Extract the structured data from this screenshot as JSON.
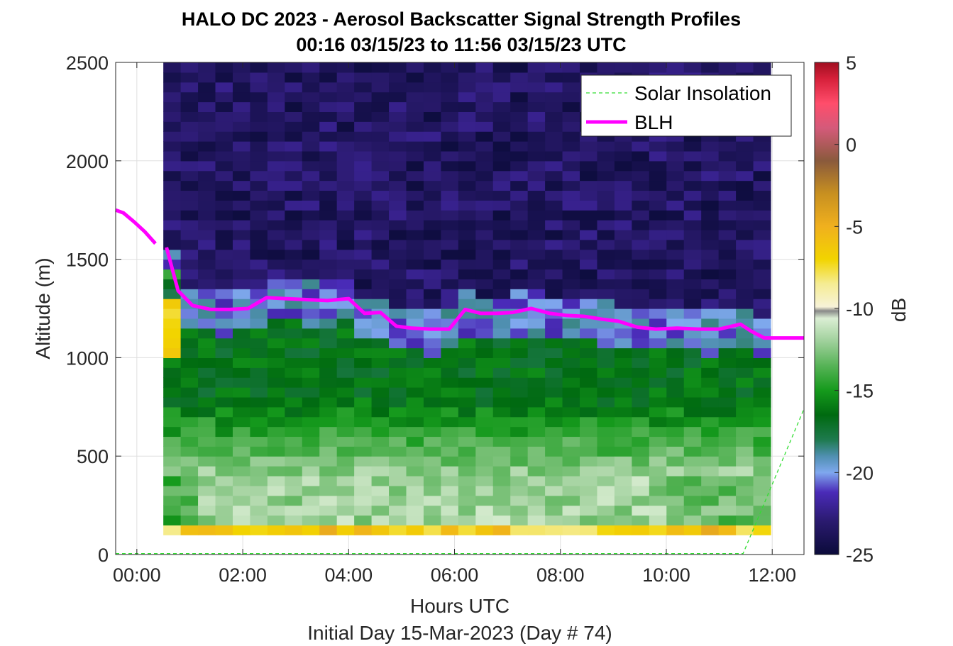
{
  "chart_data": {
    "type": "heatmap",
    "title": "HALO DC 2023 - Aerosol Backscatter Signal Strength Profiles",
    "subtitle": "00:16 03/15/23 to 11:56 03/15/23  UTC",
    "xlabel": "Hours UTC",
    "xlabel2": "Initial Day 15-Mar-2023 (Day # 74)",
    "ylabel": "Altitude (m)",
    "colorbar_label": "dB",
    "xlim": [
      -0.4,
      12.6
    ],
    "ylim": [
      0,
      2500
    ],
    "clim": [
      -25,
      5
    ],
    "x_ticks": [
      0,
      2,
      4,
      6,
      8,
      10,
      12
    ],
    "x_tick_labels": [
      "00:00",
      "02:00",
      "04:00",
      "06:00",
      "08:00",
      "10:00",
      "12:00"
    ],
    "y_ticks": [
      0,
      500,
      1000,
      1500,
      2000,
      2500
    ],
    "y_tick_labels": [
      "0",
      "500",
      "1000",
      "1500",
      "2000",
      "2500"
    ],
    "c_ticks": [
      5,
      0,
      -5,
      -10,
      -15,
      -20,
      -25
    ],
    "c_tick_labels": [
      "5",
      "0",
      "-5",
      "-10",
      "-15",
      "-20",
      "-25"
    ],
    "grid": true,
    "legend_position": "top-right",
    "legend": [
      "Solar Insolation",
      "BLH"
    ],
    "heatmap_x_start": 0.5,
    "heatmap_x_end": 11.97,
    "heatmap_columns": 35,
    "heatmap_y_bottom": 100,
    "heatmap_y_top": 2500,
    "heatmap_bin_m": 50,
    "blh_hours": [
      -0.4,
      -0.25,
      -0.05,
      0.15,
      0.35,
      0.56,
      0.78,
      1.05,
      1.4,
      1.75,
      2.1,
      2.45,
      2.8,
      3.2,
      3.6,
      4.0,
      4.3,
      4.6,
      4.9,
      5.2,
      5.55,
      5.9,
      6.2,
      6.5,
      6.8,
      7.1,
      7.45,
      7.8,
      8.1,
      8.45,
      8.8,
      9.1,
      9.45,
      9.8,
      10.2,
      10.6,
      11.0,
      11.4,
      11.6,
      11.85,
      12.1,
      12.6
    ],
    "blh_altitude": [
      1750,
      1735,
      1690,
      1640,
      1580,
      1560,
      1340,
      1265,
      1245,
      1245,
      1250,
      1305,
      1300,
      1295,
      1290,
      1300,
      1225,
      1230,
      1160,
      1150,
      1145,
      1145,
      1245,
      1225,
      1225,
      1230,
      1250,
      1225,
      1215,
      1210,
      1195,
      1185,
      1155,
      1145,
      1150,
      1145,
      1145,
      1170,
      1135,
      1100,
      1100,
      1100
    ],
    "blh_gap_after_index": 4,
    "solar_hours": [
      -0.4,
      11.45,
      12.6
    ],
    "solar_altitude": [
      5,
      5,
      740
    ],
    "colormap_stops": [
      {
        "value": -25,
        "color": "#0b0b3a"
      },
      {
        "value": -23,
        "color": "#2a1a6e"
      },
      {
        "value": -21.2,
        "color": "#4a2bb8"
      },
      {
        "value": -20,
        "color": "#7fa8ee"
      },
      {
        "value": -19,
        "color": "#4f8fb0"
      },
      {
        "value": -18,
        "color": "#1e7a4e"
      },
      {
        "value": -16.5,
        "color": "#006a10"
      },
      {
        "value": -15,
        "color": "#159a1c"
      },
      {
        "value": -13.5,
        "color": "#56b356"
      },
      {
        "value": -12,
        "color": "#9fd09b"
      },
      {
        "value": -10.6,
        "color": "#dbeed4"
      },
      {
        "value": -10.15,
        "color": "#888888"
      },
      {
        "value": -9.9,
        "color": "#f7f3d8"
      },
      {
        "value": -8.5,
        "color": "#f5ec93"
      },
      {
        "value": -7,
        "color": "#f2d400"
      },
      {
        "value": -5,
        "color": "#f0b01e"
      },
      {
        "value": -3,
        "color": "#c89020"
      },
      {
        "value": -1,
        "color": "#8a5a3c"
      },
      {
        "value": 1,
        "color": "#d45a7a"
      },
      {
        "value": 2.5,
        "color": "#ff4d6b"
      },
      {
        "value": 4,
        "color": "#d6203a"
      },
      {
        "value": 5,
        "color": "#a00e20"
      }
    ],
    "colors": {
      "blh": "#ff00ff",
      "solar": "#33dd33",
      "axis": "#262626",
      "grid": "#dfdfdf"
    }
  }
}
